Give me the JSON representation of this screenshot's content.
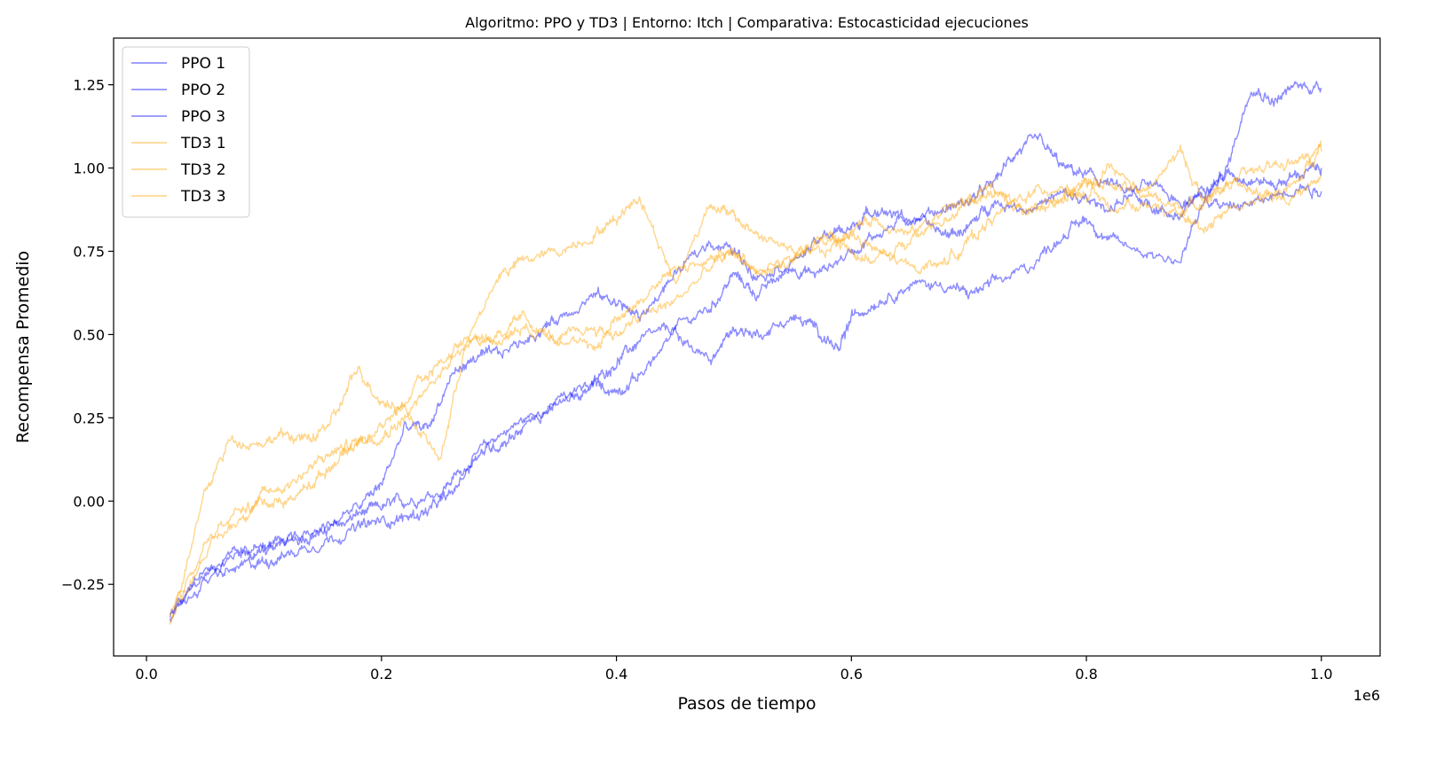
{
  "chart_data": {
    "type": "line",
    "title": "Algoritmo: PPO y TD3 | Entorno: Itch | Comparativa: Estocasticidad ejecuciones",
    "xlabel": "Pasos de tiempo",
    "ylabel": "Recompensa Promedio",
    "x_offset_label": "1e6",
    "xlim": [
      -0.028,
      1.05
    ],
    "ylim": [
      -0.465,
      1.39
    ],
    "x_ticks": [
      0.0,
      0.2,
      0.4,
      0.6,
      0.8,
      1.0
    ],
    "x_tick_labels": [
      "0.0",
      "0.2",
      "0.4",
      "0.6",
      "0.8",
      "1.0"
    ],
    "y_ticks": [
      -0.25,
      0.0,
      0.25,
      0.5,
      0.75,
      1.0,
      1.25
    ],
    "y_tick_labels": [
      "−0.25",
      "0.00",
      "0.25",
      "0.50",
      "0.75",
      "1.00",
      "1.25"
    ],
    "grid": false,
    "legend_position": "top-left",
    "colors": {
      "ppo": "#0000ff",
      "td3": "#ffa500"
    },
    "series": [
      {
        "name": "PPO 1",
        "color": "#0000ff",
        "x": [
          0.02,
          0.05,
          0.08,
          0.1,
          0.12,
          0.14,
          0.16,
          0.18,
          0.2,
          0.22,
          0.25,
          0.27,
          0.3,
          0.33,
          0.36,
          0.38,
          0.4,
          0.42,
          0.45,
          0.48,
          0.5,
          0.52,
          0.55,
          0.57,
          0.6,
          0.62,
          0.65,
          0.68,
          0.7,
          0.72,
          0.74,
          0.76,
          0.78,
          0.8,
          0.82,
          0.84,
          0.86,
          0.88,
          0.9,
          0.92,
          0.94,
          0.96,
          0.98,
          1.0
        ],
        "y": [
          -0.35,
          -0.22,
          -0.15,
          -0.14,
          -0.12,
          -0.1,
          -0.08,
          -0.04,
          -0.02,
          0.0,
          0.03,
          0.1,
          0.2,
          0.26,
          0.3,
          0.35,
          0.42,
          0.48,
          0.52,
          0.58,
          0.68,
          0.62,
          0.7,
          0.68,
          0.75,
          0.8,
          0.85,
          0.88,
          0.9,
          0.95,
          1.05,
          1.08,
          1.0,
          0.98,
          0.95,
          0.92,
          0.88,
          0.85,
          0.95,
          0.98,
          0.97,
          0.95,
          0.98,
          1.0
        ]
      },
      {
        "name": "PPO 2",
        "color": "#0000ff",
        "x": [
          0.02,
          0.05,
          0.08,
          0.1,
          0.12,
          0.15,
          0.18,
          0.2,
          0.22,
          0.24,
          0.26,
          0.28,
          0.3,
          0.32,
          0.35,
          0.38,
          0.4,
          0.42,
          0.45,
          0.48,
          0.5,
          0.52,
          0.55,
          0.57,
          0.59,
          0.6,
          0.62,
          0.65,
          0.68,
          0.7,
          0.72,
          0.75,
          0.78,
          0.8,
          0.82,
          0.85,
          0.88,
          0.9,
          0.92,
          0.94,
          0.96,
          0.98,
          1.0
        ],
        "y": [
          -0.35,
          -0.24,
          -0.2,
          -0.18,
          -0.16,
          -0.12,
          -0.08,
          -0.06,
          -0.05,
          -0.03,
          0.02,
          0.14,
          0.17,
          0.22,
          0.3,
          0.35,
          0.33,
          0.38,
          0.5,
          0.42,
          0.52,
          0.5,
          0.55,
          0.52,
          0.45,
          0.55,
          0.6,
          0.65,
          0.65,
          0.62,
          0.65,
          0.7,
          0.8,
          0.85,
          0.78,
          0.75,
          0.72,
          0.9,
          1.0,
          1.25,
          1.2,
          1.25,
          1.24
        ]
      },
      {
        "name": "PPO 3",
        "color": "#0000ff",
        "x": [
          0.02,
          0.05,
          0.08,
          0.1,
          0.12,
          0.15,
          0.18,
          0.2,
          0.22,
          0.24,
          0.26,
          0.28,
          0.3,
          0.33,
          0.35,
          0.38,
          0.4,
          0.42,
          0.45,
          0.48,
          0.5,
          0.52,
          0.55,
          0.58,
          0.6,
          0.62,
          0.65,
          0.68,
          0.7,
          0.72,
          0.75,
          0.78,
          0.8,
          0.82,
          0.85,
          0.88,
          0.9,
          0.92,
          0.95,
          0.98,
          1.0
        ],
        "y": [
          -0.33,
          -0.2,
          -0.16,
          -0.15,
          -0.12,
          -0.08,
          -0.02,
          0.05,
          0.22,
          0.22,
          0.38,
          0.43,
          0.44,
          0.5,
          0.55,
          0.62,
          0.6,
          0.55,
          0.68,
          0.78,
          0.75,
          0.68,
          0.72,
          0.8,
          0.82,
          0.88,
          0.85,
          0.8,
          0.82,
          0.9,
          0.88,
          0.92,
          0.9,
          0.88,
          0.95,
          0.9,
          0.92,
          0.88,
          0.9,
          0.95,
          0.93
        ]
      },
      {
        "name": "TD3 1",
        "color": "#ffa500",
        "x": [
          0.02,
          0.05,
          0.07,
          0.1,
          0.12,
          0.14,
          0.16,
          0.18,
          0.2,
          0.22,
          0.25,
          0.27,
          0.3,
          0.32,
          0.35,
          0.38,
          0.4,
          0.42,
          0.45,
          0.48,
          0.5,
          0.52,
          0.55,
          0.58,
          0.6,
          0.62,
          0.65,
          0.68,
          0.7,
          0.72,
          0.75,
          0.78,
          0.8,
          0.82,
          0.85,
          0.88,
          0.9,
          0.92,
          0.95,
          0.98,
          1.0
        ],
        "y": [
          -0.37,
          0.02,
          0.18,
          0.18,
          0.2,
          0.18,
          0.25,
          0.4,
          0.3,
          0.28,
          0.12,
          0.45,
          0.68,
          0.72,
          0.75,
          0.8,
          0.85,
          0.92,
          0.65,
          0.9,
          0.85,
          0.8,
          0.75,
          0.78,
          0.8,
          0.75,
          0.7,
          0.72,
          0.78,
          0.85,
          0.92,
          0.95,
          0.9,
          1.0,
          0.92,
          1.05,
          0.9,
          0.95,
          1.0,
          1.02,
          1.05
        ]
      },
      {
        "name": "TD3 2",
        "color": "#ffa500",
        "x": [
          0.02,
          0.05,
          0.08,
          0.1,
          0.12,
          0.14,
          0.16,
          0.18,
          0.2,
          0.22,
          0.25,
          0.28,
          0.3,
          0.32,
          0.35,
          0.38,
          0.4,
          0.42,
          0.45,
          0.48,
          0.5,
          0.52,
          0.55,
          0.58,
          0.6,
          0.62,
          0.65,
          0.68,
          0.7,
          0.72,
          0.75,
          0.78,
          0.8,
          0.82,
          0.85,
          0.88,
          0.9,
          0.92,
          0.95,
          0.98,
          1.0
        ],
        "y": [
          -0.35,
          -0.12,
          -0.03,
          0.0,
          0.0,
          0.05,
          0.12,
          0.18,
          0.22,
          0.3,
          0.42,
          0.48,
          0.5,
          0.52,
          0.5,
          0.45,
          0.55,
          0.6,
          0.7,
          0.72,
          0.75,
          0.7,
          0.72,
          0.8,
          0.75,
          0.72,
          0.78,
          0.85,
          0.9,
          0.95,
          0.85,
          0.92,
          0.95,
          0.88,
          0.9,
          0.85,
          0.82,
          0.88,
          0.9,
          0.92,
          0.98
        ]
      },
      {
        "name": "TD3 3",
        "color": "#ffa500",
        "x": [
          0.02,
          0.05,
          0.08,
          0.1,
          0.12,
          0.14,
          0.16,
          0.18,
          0.2,
          0.22,
          0.25,
          0.27,
          0.3,
          0.32,
          0.35,
          0.38,
          0.4,
          0.42,
          0.45,
          0.48,
          0.5,
          0.52,
          0.55,
          0.58,
          0.6,
          0.62,
          0.65,
          0.68,
          0.7,
          0.72,
          0.75,
          0.78,
          0.8,
          0.82,
          0.85,
          0.88,
          0.9,
          0.92,
          0.95,
          0.98,
          1.0
        ],
        "y": [
          -0.36,
          -0.15,
          -0.05,
          0.02,
          0.05,
          0.1,
          0.15,
          0.18,
          0.2,
          0.25,
          0.38,
          0.5,
          0.48,
          0.55,
          0.48,
          0.52,
          0.5,
          0.55,
          0.6,
          0.7,
          0.75,
          0.68,
          0.72,
          0.75,
          0.82,
          0.85,
          0.8,
          0.88,
          0.9,
          0.92,
          0.88,
          0.9,
          0.98,
          0.95,
          0.92,
          0.88,
          0.9,
          0.95,
          0.92,
          0.95,
          1.08
        ]
      }
    ]
  }
}
